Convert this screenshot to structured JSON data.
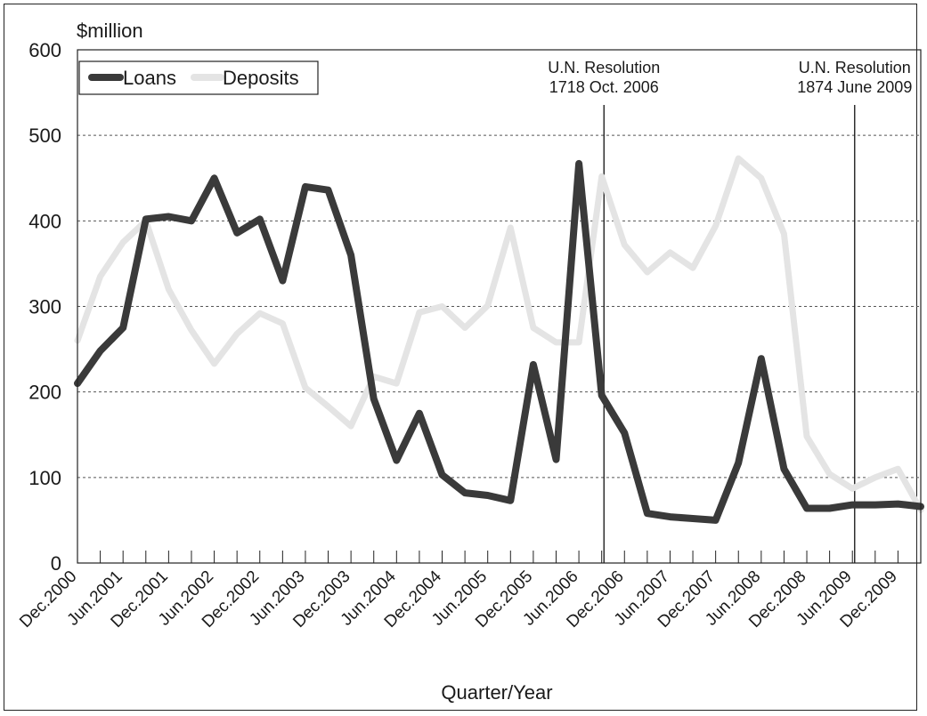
{
  "chart_data": {
    "type": "line",
    "ylabel": "$million",
    "xlabel": "Quarter/Year",
    "ylim": [
      0,
      600
    ],
    "yticks": [
      0,
      100,
      200,
      300,
      400,
      500,
      600
    ],
    "grid": "horizontal-dashed",
    "legend_position": "top-left",
    "categories": [
      "Dec.2000",
      "Mar.2001",
      "Jun.2001",
      "Sep.2001",
      "Dec.2001",
      "Mar.2002",
      "Jun.2002",
      "Sep.2002",
      "Dec.2002",
      "Mar.2003",
      "Jun.2003",
      "Sep.2003",
      "Dec.2003",
      "Mar.2004",
      "Jun.2004",
      "Sep.2004",
      "Dec.2004",
      "Mar.2005",
      "Jun.2005",
      "Sep.2005",
      "Dec.2005",
      "Mar.2006",
      "Jun.2006",
      "Sep.2006",
      "Dec.2006",
      "Mar.2007",
      "Jun.2007",
      "Sep.2007",
      "Dec.2007",
      "Mar.2008",
      "Jun.2008",
      "Sep.2008",
      "Dec.2008",
      "Mar.2009",
      "Jun.2009",
      "Sep.2009",
      "Dec.2009",
      "Mar.2010"
    ],
    "tick_labels": [
      "Dec.2000",
      "Jun.2001",
      "Dec.2001",
      "Jun.2002",
      "Dec.2002",
      "Jun.2003",
      "Dec.2003",
      "Jun.2004",
      "Dec.2004",
      "Jun.2005",
      "Dec.2005",
      "Jun.2006",
      "Dec.2006",
      "Jun.2007",
      "Dec.2007",
      "Jun.2008",
      "Dec.2008",
      "Jun.2009",
      "Dec.2009"
    ],
    "series": [
      {
        "name": "Loans",
        "color": "#3a3a3a",
        "values": [
          210,
          248,
          275,
          402,
          405,
          400,
          450,
          386,
          402,
          330,
          440,
          436,
          360,
          192,
          120,
          175,
          103,
          82,
          79,
          73,
          232,
          121,
          467,
          196,
          152,
          58,
          54,
          52,
          50,
          117,
          239,
          110,
          64,
          64,
          68,
          68,
          69,
          66
        ]
      },
      {
        "name": "Deposits",
        "color": "#e4e4e4",
        "values": [
          260,
          335,
          375,
          400,
          320,
          272,
          233,
          268,
          292,
          280,
          205,
          183,
          160,
          218,
          210,
          293,
          300,
          275,
          301,
          392,
          275,
          258,
          258,
          452,
          372,
          340,
          363,
          345,
          394,
          473,
          450,
          385,
          148,
          104,
          87,
          100,
          110,
          62
        ]
      }
    ],
    "annotations": [
      {
        "x": "Sep.2006",
        "lines": [
          "U.N. Resolution",
          "1718 Oct. 2006"
        ]
      },
      {
        "x": "Jun.2009",
        "lines": [
          "U.N. Resolution",
          "1874 June 2009"
        ]
      }
    ]
  }
}
